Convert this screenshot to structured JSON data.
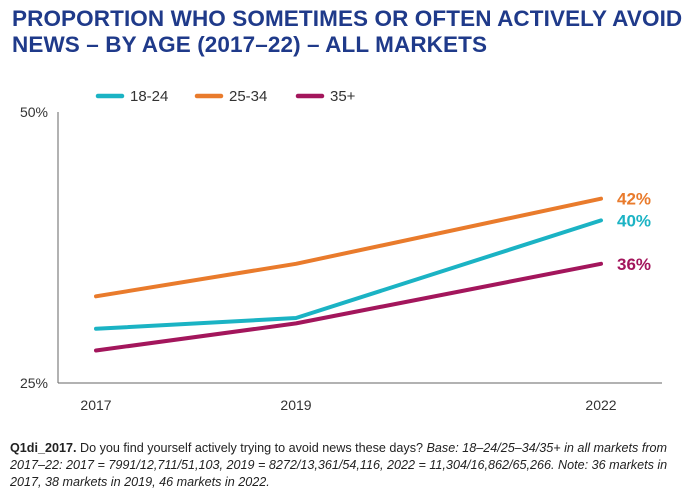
{
  "header": {
    "title_line1": "PROPORTION WHO SOMETIMES OR OFTEN ACTIVELY AVOID",
    "title_line2": "NEWS – BY AGE (2017–22) – ALL MARKETS"
  },
  "chart_data": {
    "type": "line",
    "title": "PROPORTION WHO SOMETIMES OR OFTEN ACTIVELY AVOID NEWS – BY AGE (2017–22) – ALL MARKETS",
    "x": [
      2017,
      2019,
      2022
    ],
    "x_tick_labels": [
      "2017",
      "2019",
      "2022"
    ],
    "ylim": [
      25,
      50
    ],
    "y_tick_labels": [
      "25%",
      "50%"
    ],
    "xlabel": "",
    "ylabel": "",
    "legend_position": "top",
    "series": [
      {
        "name": "18-24",
        "color": "#1bb3c4",
        "values": [
          30,
          31,
          40
        ],
        "end_label": "40%"
      },
      {
        "name": "25-34",
        "color": "#e97b2c",
        "values": [
          33,
          36,
          42
        ],
        "end_label": "42%"
      },
      {
        "name": "35+",
        "color": "#a3165c",
        "values": [
          28,
          30.5,
          36
        ],
        "end_label": "36%"
      }
    ]
  },
  "caption": {
    "question_id": "Q1di_2017.",
    "question": " Do you find yourself actively trying to avoid news these days? ",
    "base": "Base: 18–24/25–34/35+ in all markets from 2017–22: 2017 = 7991/12,711/51,103, 2019 = 8272/13,361/54,116, 2022 = 11,304/16,862/65,266. Note: 36 markets in 2017, 38 markets in 2019, 46 markets in 2022."
  }
}
